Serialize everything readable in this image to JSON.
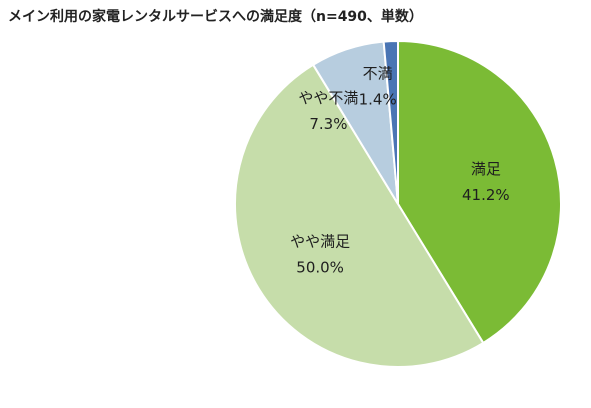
{
  "chart_data": {
    "type": "pie",
    "title": "メイン利用の家電レンタルサービスへの満足度（n=490、単数）",
    "start_angle_deg": 0,
    "direction": "clockwise",
    "slices": [
      {
        "label": "満足",
        "value": 41.2,
        "value_label": "41.2%",
        "color": "#7bbb35"
      },
      {
        "label": "やや満足",
        "value": 50.0,
        "value_label": "50.0%",
        "color": "#c6ddaa"
      },
      {
        "label": "やや不満",
        "value": 7.3,
        "value_label": "7.3%",
        "color": "#b7cddf"
      },
      {
        "label": "不満",
        "value": 1.4,
        "value_label": "1.4%",
        "color": "#4a75b4"
      }
    ]
  }
}
